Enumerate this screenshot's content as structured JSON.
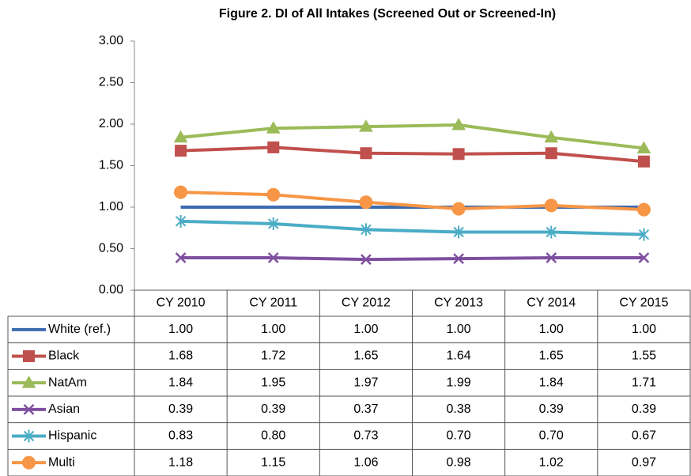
{
  "chart_data": {
    "type": "line",
    "title": "Figure 2. DI of All Intakes (Screened Out or Screened-In)",
    "categories": [
      "CY 2010",
      "CY 2011",
      "CY 2012",
      "CY 2013",
      "CY 2014",
      "CY 2015"
    ],
    "series": [
      {
        "name": "White (ref.)",
        "color": "#3a6ab0",
        "marker": "none",
        "values": [
          1,
          1,
          1,
          1,
          1,
          1
        ],
        "value_labels": [
          "1.00",
          "1.00",
          "1.00",
          "1.00",
          "1.00",
          "1.00"
        ]
      },
      {
        "name": "Black",
        "color": "#c0504d",
        "marker": "square",
        "values": [
          1.68,
          1.72,
          1.65,
          1.64,
          1.65,
          1.55
        ],
        "value_labels": [
          "1.68",
          "1.72",
          "1.65",
          "1.64",
          "1.65",
          "1.55"
        ]
      },
      {
        "name": "NatAm",
        "color": "#9bbb59",
        "marker": "triangle",
        "values": [
          1.84,
          1.95,
          1.97,
          1.99,
          1.84,
          1.71
        ],
        "value_labels": [
          "1.84",
          "1.95",
          "1.97",
          "1.99",
          "1.84",
          "1.71"
        ]
      },
      {
        "name": "Asian",
        "color": "#7f4f9f",
        "marker": "x",
        "values": [
          0.39,
          0.39,
          0.37,
          0.38,
          0.39,
          0.39
        ],
        "value_labels": [
          "0.39",
          "0.39",
          "0.37",
          "0.38",
          "0.39",
          "0.39"
        ]
      },
      {
        "name": "Hispanic",
        "color": "#4bacc6",
        "marker": "star",
        "values": [
          0.83,
          0.8,
          0.73,
          0.7,
          0.7,
          0.67
        ],
        "value_labels": [
          "0.83",
          "0.80",
          "0.73",
          "0.70",
          "0.70",
          "0.67"
        ]
      },
      {
        "name": "Multi",
        "color": "#f79646",
        "marker": "circle",
        "values": [
          1.18,
          1.15,
          1.06,
          0.98,
          1.02,
          0.97
        ],
        "value_labels": [
          "1.18",
          "1.15",
          "1.06",
          "0.98",
          "1.02",
          "0.97"
        ]
      }
    ],
    "ylim": [
      0,
      3
    ],
    "yticks": [
      {
        "value": 0,
        "label": "0.00"
      },
      {
        "value": 0.5,
        "label": "0.50"
      },
      {
        "value": 1,
        "label": "1.00"
      },
      {
        "value": 1.5,
        "label": "1.50"
      },
      {
        "value": 2,
        "label": "2.00"
      },
      {
        "value": 2.5,
        "label": "2.50"
      },
      {
        "value": 3,
        "label": "3.00"
      }
    ],
    "grid": false
  }
}
